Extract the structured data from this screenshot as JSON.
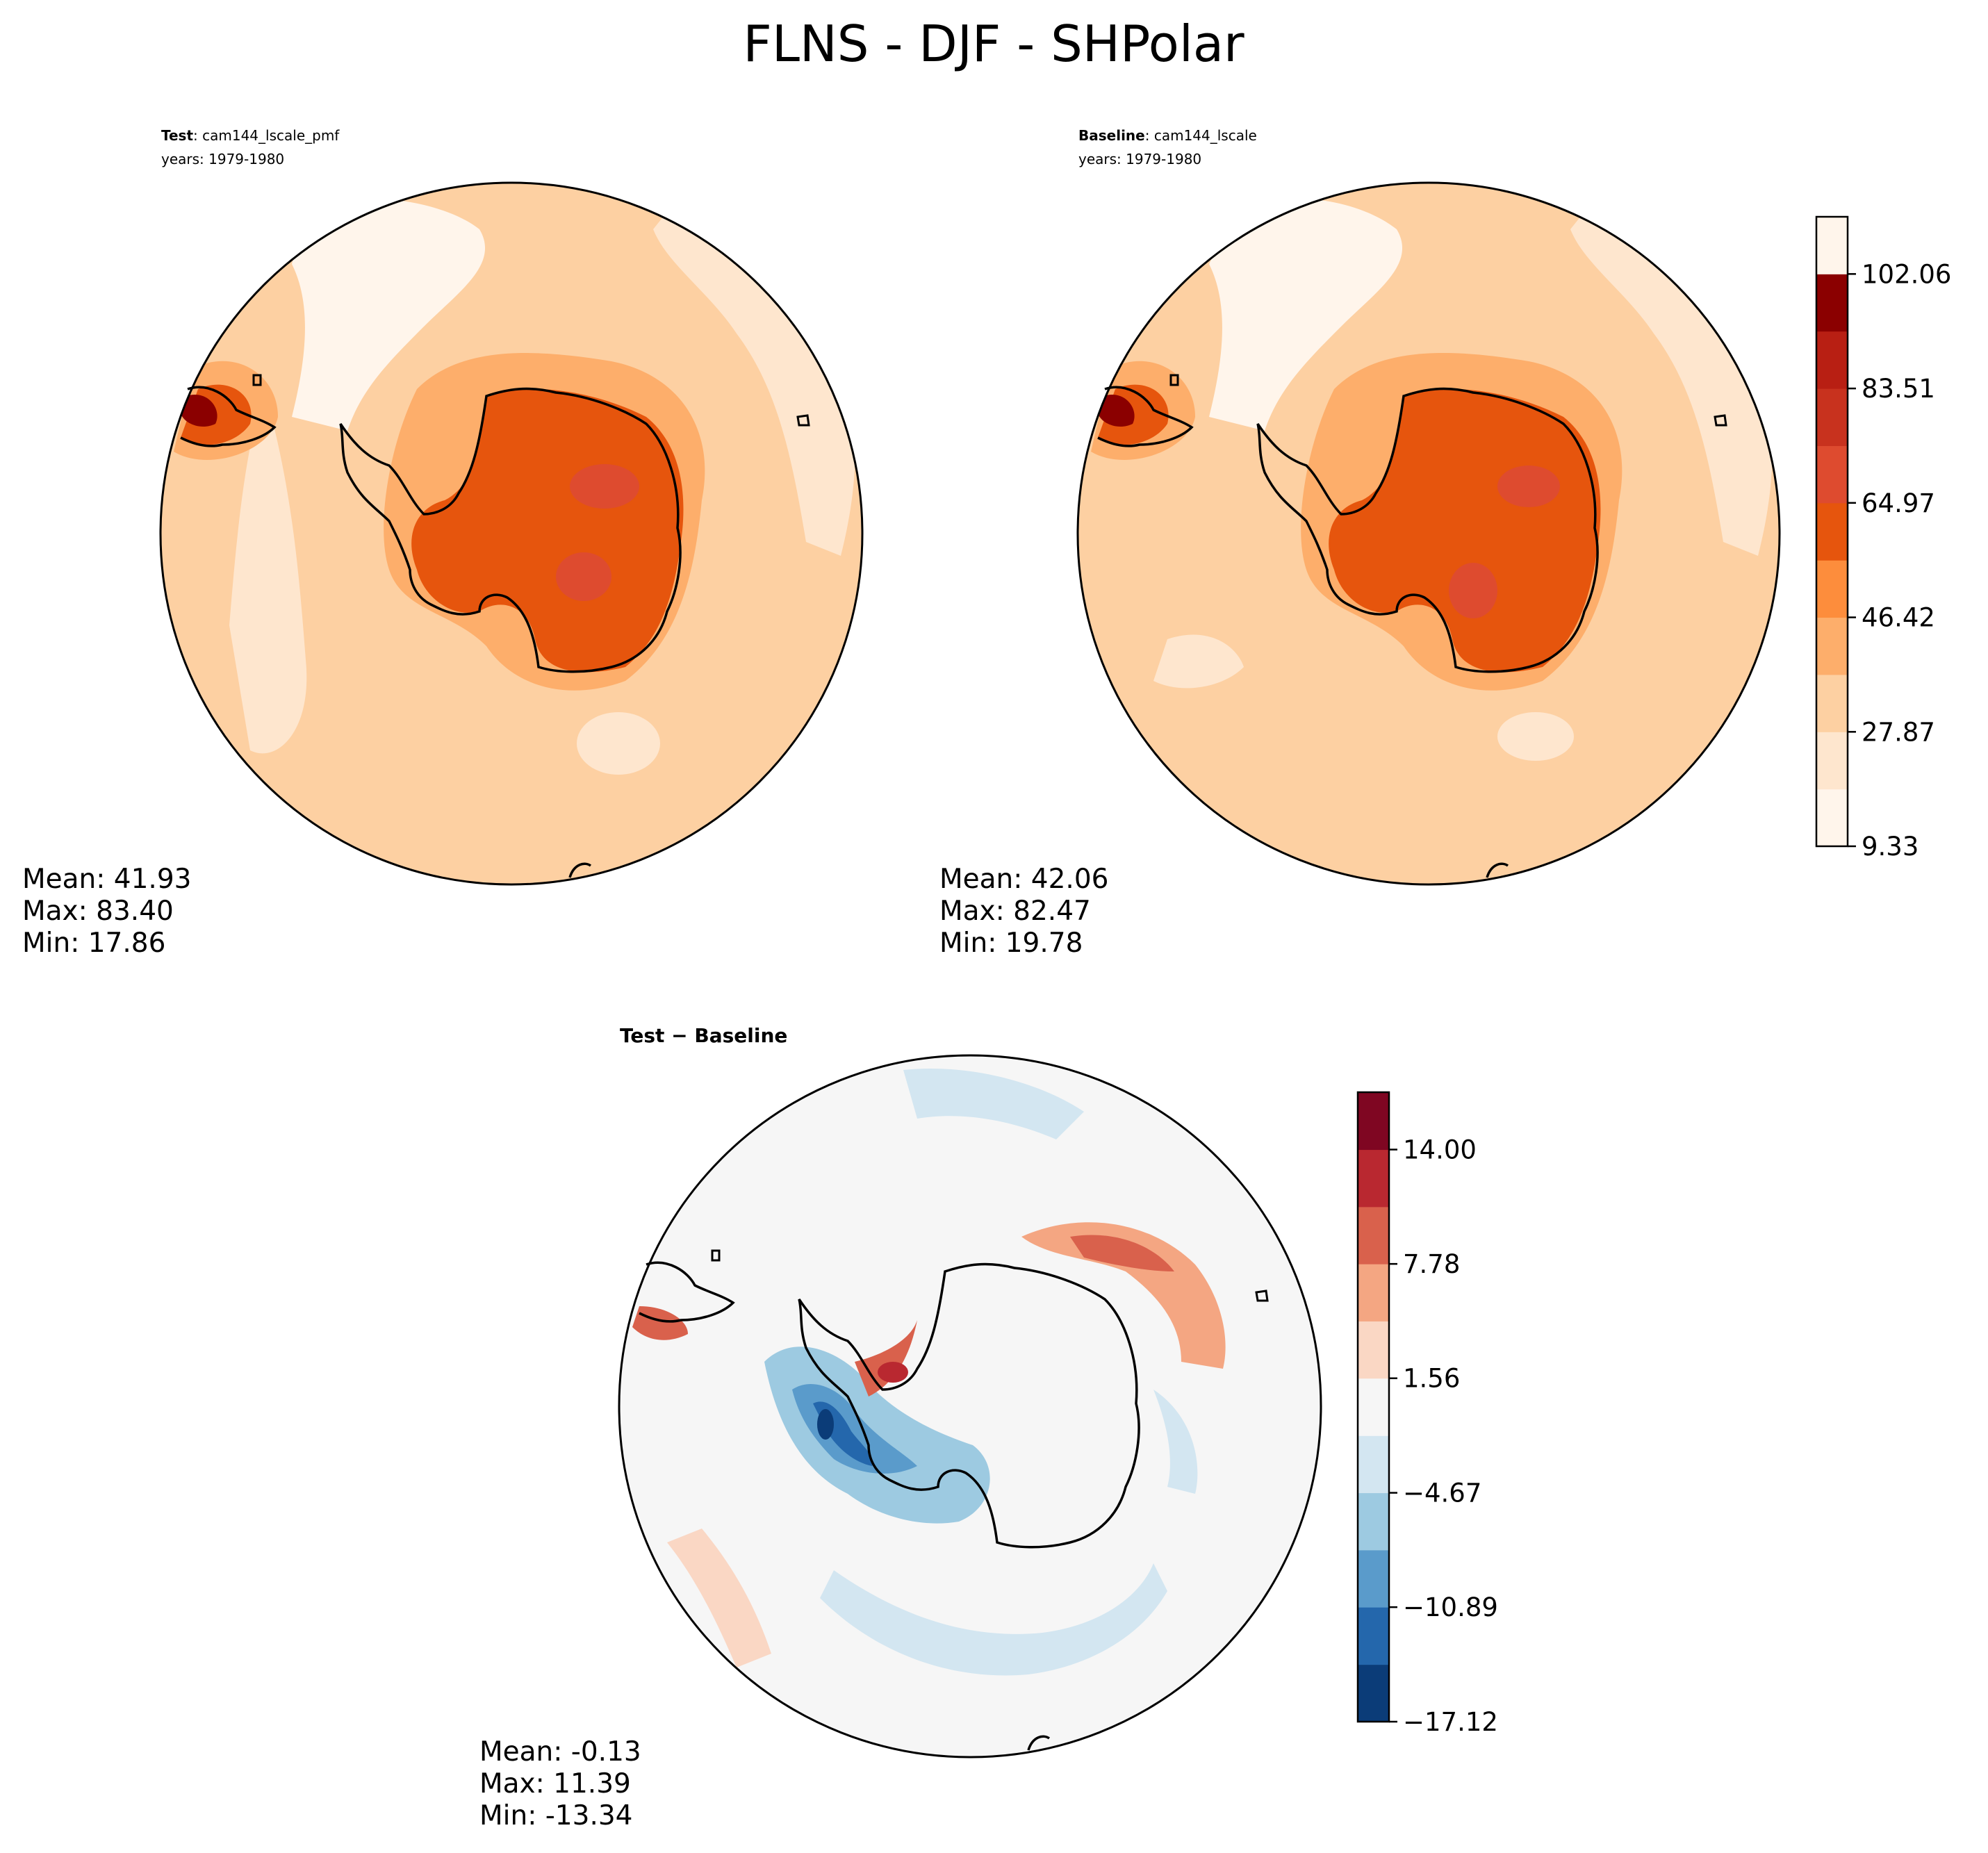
{
  "figure_title": "FLNS - DJF - SHPolar",
  "colors": {
    "abs_scale": [
      "#fff5eb",
      "#fee6ce",
      "#fdd0a2",
      "#fdae6b",
      "#fd8d3c",
      "#e6550d",
      "#de4b2f",
      "#c8321e",
      "#b81f13",
      "#8b0000"
    ],
    "diff_scale": [
      "#0b3c78",
      "#2467ac",
      "#5a9bcb",
      "#9dcae1",
      "#d3e6f1",
      "#f6f6f6",
      "#fad7c4",
      "#f4a682",
      "#d9614c",
      "#b92830",
      "#7f0622"
    ],
    "coastline": "#000000",
    "background": "#ffffff"
  },
  "panels": {
    "test": {
      "label_bold": "Test",
      "label_sep": ": ",
      "name": "cam144_lscale_pmf",
      "years": "years: 1979-1980",
      "mean": "Mean: 41.93",
      "max": "Max: 83.40",
      "min": "Min: 17.86"
    },
    "baseline": {
      "label_bold": "Baseline",
      "label_sep": ": ",
      "name": "cam144_lscale",
      "years": "years: 1979-1980",
      "mean": "Mean: 42.06",
      "max": "Max: 82.47",
      "min": "Min: 19.78"
    },
    "diff": {
      "title": "Test − Baseline",
      "mean": "Mean: -0.13",
      "max": "Max: 11.39",
      "min": "Min: -13.34"
    }
  },
  "chart_data": [
    {
      "type": "heatmap",
      "title": "Test: cam144_lscale_pmf",
      "projection": "south polar stereographic",
      "variable": "FLNS",
      "season": "DJF",
      "region": "SHPolar",
      "stats": {
        "mean": 41.93,
        "max": 83.4,
        "min": 17.86
      }
    },
    {
      "type": "heatmap",
      "title": "Baseline: cam144_lscale",
      "projection": "south polar stereographic",
      "stats": {
        "mean": 42.06,
        "max": 82.47,
        "min": 19.78
      },
      "colorbar": {
        "levels": [
          9.33,
          18.6,
          27.87,
          37.15,
          46.42,
          55.69,
          64.97,
          74.24,
          83.51,
          92.79,
          102.06,
          111.33
        ],
        "tick_labels": [
          "9.33",
          "27.87",
          "46.42",
          "64.97",
          "83.51",
          "102.06"
        ],
        "tick_values": [
          9.33,
          27.87,
          46.42,
          64.97,
          83.51,
          102.06
        ]
      }
    },
    {
      "type": "heatmap",
      "title": "Test − Baseline",
      "projection": "south polar stereographic",
      "stats": {
        "mean": -0.13,
        "max": 11.39,
        "min": -13.34
      },
      "colorbar": {
        "levels": [
          -17.12,
          -14.01,
          -10.89,
          -7.78,
          -4.67,
          -1.56,
          1.56,
          4.67,
          7.78,
          10.89,
          14.0,
          17.12
        ],
        "tick_labels": [
          "−17.12",
          "−10.89",
          "−4.67",
          "1.56",
          "7.78",
          "14.00"
        ],
        "tick_values": [
          -17.12,
          -10.89,
          -4.67,
          1.56,
          7.78,
          14.0
        ]
      }
    }
  ]
}
